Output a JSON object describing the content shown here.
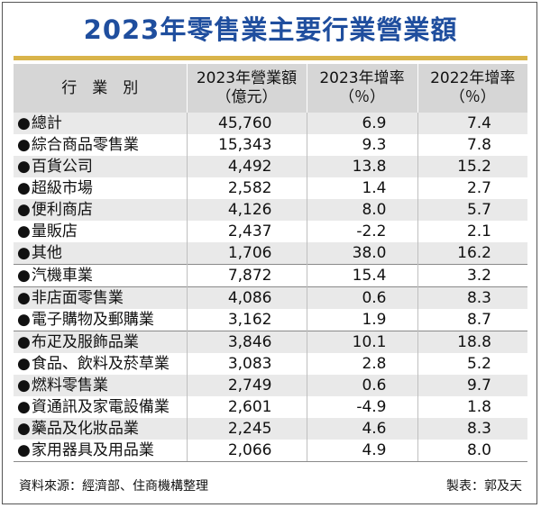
{
  "title": "2023年零售業主要行業營業額",
  "header": {
    "col0": "行　業　別",
    "col1_line1": "2023年營業額",
    "col1_line2": "（億元）",
    "col2_line1": "2023年增率",
    "col2_line2": "（％）",
    "col3_line1": "2022年增率",
    "col3_line2": "（％）"
  },
  "bullet": "●",
  "rows": [
    {
      "name": "總計",
      "revenue": "45,760",
      "growth_2023": "6.9",
      "growth_2022": "7.4"
    },
    {
      "name": "綜合商品零售業",
      "revenue": "15,343",
      "growth_2023": "9.3",
      "growth_2022": "7.8"
    },
    {
      "name": "百貨公司",
      "revenue": "4,492",
      "growth_2023": "13.8",
      "growth_2022": "15.2"
    },
    {
      "name": "超級市場",
      "revenue": "2,582",
      "growth_2023": "1.4",
      "growth_2022": "2.7"
    },
    {
      "name": "便利商店",
      "revenue": "4,126",
      "growth_2023": "8.0",
      "growth_2022": "5.7"
    },
    {
      "name": "量販店",
      "revenue": "2,437",
      "growth_2023": "-2.2",
      "growth_2022": "2.1"
    },
    {
      "name": "其他",
      "revenue": "1,706",
      "growth_2023": "38.0",
      "growth_2022": "16.2"
    },
    {
      "name": "汽機車業",
      "revenue": "7,872",
      "growth_2023": "15.4",
      "growth_2022": "3.2"
    },
    {
      "name": "非店面零售業",
      "revenue": "4,086",
      "growth_2023": "0.6",
      "growth_2022": "8.3"
    },
    {
      "name": "電子購物及郵購業",
      "revenue": "3,162",
      "growth_2023": "1.9",
      "growth_2022": "8.7"
    },
    {
      "name": "布疋及服飾品業",
      "revenue": "3,846",
      "growth_2023": "10.1",
      "growth_2022": "18.8"
    },
    {
      "name": "食品、飲料及菸草業",
      "revenue": "3,083",
      "growth_2023": "2.8",
      "growth_2022": "5.2"
    },
    {
      "name": "燃料零售業",
      "revenue": "2,749",
      "growth_2023": "0.6",
      "growth_2022": "9.7"
    },
    {
      "name": "資通訊及家電設備業",
      "revenue": "2,601",
      "growth_2023": "-4.9",
      "growth_2022": "1.8"
    },
    {
      "name": "藥品及化妝品業",
      "revenue": "2,245",
      "growth_2023": "4.6",
      "growth_2022": "8.3"
    },
    {
      "name": "家用器具及用品業",
      "revenue": "2,066",
      "growth_2023": "4.9",
      "growth_2022": "8.0"
    }
  ],
  "source": "資料來源：經濟部、住商機構整理",
  "credit": "製表：郭及天",
  "colors": {
    "title": "#1f4e9e",
    "accent_bar": "#d9b44a",
    "header_bg": "#d6d6d6",
    "row_shade": "#e9e9e9"
  }
}
